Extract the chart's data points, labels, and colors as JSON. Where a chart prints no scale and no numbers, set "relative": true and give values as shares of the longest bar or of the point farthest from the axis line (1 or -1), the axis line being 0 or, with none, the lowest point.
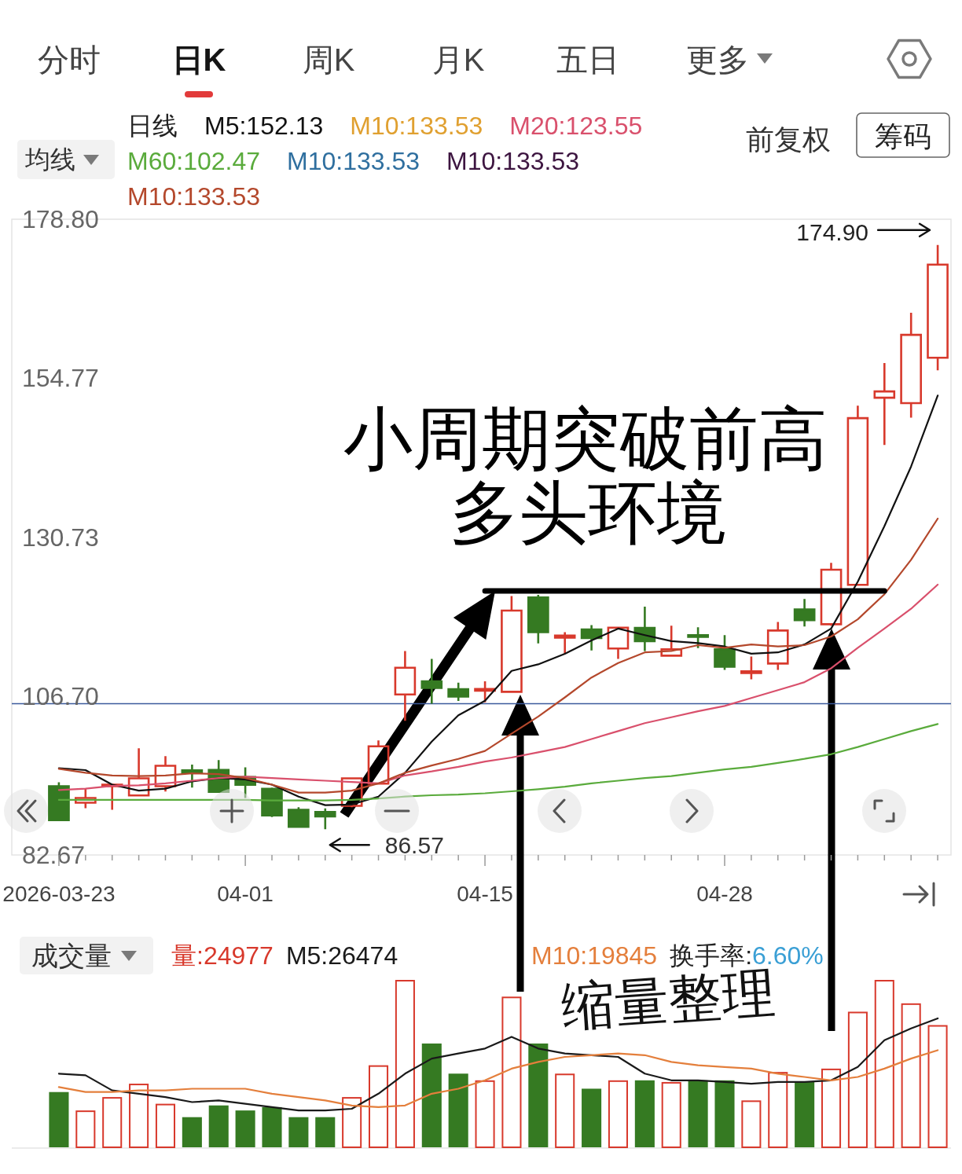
{
  "chart_data": [
    {
      "type": "other",
      "annotations": [
        "分时",
        "日K",
        "周K",
        "月K",
        "五日",
        "更多",
        "前复权",
        "筹码"
      ]
    },
    {
      "type": "candlestick",
      "title": "均线",
      "legend_title": "日线",
      "legend": "top left",
      "categories": [
        "2026-03-23",
        null,
        null,
        null,
        null,
        null,
        null,
        "04-01",
        null,
        null,
        null,
        null,
        null,
        null,
        null,
        null,
        "04-15",
        null,
        null,
        null,
        null,
        null,
        null,
        null,
        null,
        "04-28",
        null,
        null,
        null,
        null,
        null,
        null,
        null,
        null
      ],
      "ohlc": [
        [
          93.07,
          93.66,
          87.92,
          87.92
        ],
        [
          90.57,
          92.71,
          89.74,
          91.29
        ],
        [
          93.07,
          93.43,
          89.5,
          93.31
        ],
        [
          91.68,
          98.81,
          91.68,
          94.26
        ],
        [
          93.07,
          97.62,
          92.27,
          96.16
        ],
        [
          95.45,
          96.32,
          92.87,
          95.05
        ],
        [
          95.53,
          97.03,
          92.2,
          92.2
        ],
        [
          94.46,
          95.92,
          91.29,
          93.27
        ],
        [
          92.68,
          92.87,
          88.4,
          88.63
        ],
        [
          89.5,
          89.9,
          86.92,
          86.92
        ],
        [
          89.18,
          89.7,
          86.57,
          88.51
        ],
        [
          90.1,
          94.4,
          89.9,
          94.26
        ],
        [
          93.46,
          100.0,
          93.3,
          99.1
        ],
        [
          106.94,
          113.49,
          102.97,
          110.99
        ],
        [
          108.92,
          112.3,
          105.55,
          107.93
        ],
        [
          107.73,
          108.72,
          105.95,
          106.62
        ],
        [
          107.54,
          108.92,
          105.75,
          107.73
        ],
        [
          107.34,
          121.81,
          107.34,
          119.62
        ],
        [
          121.61,
          122.0,
          114.67,
          116.37
        ],
        [
          115.54,
          116.37,
          113.13,
          115.86
        ],
        [
          116.77,
          117.44,
          113.6,
          115.46
        ],
        [
          113.88,
          117.2,
          112.3,
          117.05
        ],
        [
          117.0,
          120.22,
          113.49,
          115.0
        ],
        [
          112.81,
          117.33,
          112.81,
          113.76
        ],
        [
          115.9,
          117.09,
          113.96,
          115.66
        ],
        [
          113.76,
          115.9,
          110.65,
          111.14
        ],
        [
          110.19,
          112.69,
          109.22,
          110.43
        ],
        [
          111.62,
          117.9,
          110.67,
          116.61
        ],
        [
          119.8,
          121.37,
          117.23,
          118.18
        ],
        [
          117.56,
          126.84,
          117.33,
          125.8
        ],
        [
          123.51,
          150.62,
          123.51,
          148.72
        ],
        [
          151.81,
          157.04,
          144.67,
          152.76
        ],
        [
          151.0,
          164.65,
          148.81,
          161.32
        ],
        [
          157.85,
          174.9,
          155.95,
          171.93
        ]
      ],
      "colors": [
        "#357a22",
        "#d8392c",
        "#d8392c",
        "#d8392c",
        "#d8392c",
        "#357a22",
        "#357a22",
        "#357a22",
        "#357a22",
        "#357a22",
        "#357a22",
        "#d8392c",
        "#d8392c",
        "#d8392c",
        "#357a22",
        "#357a22",
        "#d8392c",
        "#d8392c",
        "#357a22",
        "#d8392c",
        "#357a22",
        "#d8392c",
        "#357a22",
        "#d8392c",
        "#357a22",
        "#357a22",
        "#d8392c",
        "#d8392c",
        "#357a22",
        "#d8392c",
        "#d8392c",
        "#d8392c",
        "#d8392c",
        "#d8392c"
      ],
      "ylim": [
        82.67,
        178.8
      ],
      "yticks": [
        {
          "value": 178.8,
          "label": "178.80"
        },
        154.77,
        130.73,
        {
          "value": 106.7,
          "label": "106.70"
        },
        82.67
      ],
      "series": [
        {
          "name": "M5:152.13",
          "type": "line",
          "color": "#111111",
          "values": [
            95.8,
            95.5,
            93.3,
            92.4,
            92.7,
            93.8,
            94.3,
            94.1,
            93.3,
            91.5,
            90.2,
            90.3,
            91.5,
            95.1,
            99.8,
            103.8,
            106.0,
            110.5,
            111.5,
            113.1,
            115.1,
            116.9,
            115.9,
            115.0,
            114.7,
            114.2,
            113.1,
            113.3,
            114.5,
            116.9,
            124.0,
            132.4,
            141.4,
            152.13
          ]
        },
        {
          "name": "M10:133.53",
          "type": "line",
          "color": "#e0a030",
          "values": [
            null,
            null,
            null,
            null,
            null,
            null,
            null,
            null,
            null,
            null,
            null,
            null,
            null,
            null,
            null,
            null,
            null,
            null,
            null,
            null,
            null,
            null,
            null,
            null,
            null,
            null,
            null,
            null,
            null,
            null,
            null,
            null,
            null,
            null
          ]
        },
        {
          "name": "M20:123.55",
          "type": "line",
          "color": "#d9506c",
          "values": [
            92.5,
            92.7,
            93.1,
            93.2,
            93.5,
            93.9,
            94.3,
            94.5,
            94.3,
            94.1,
            93.9,
            93.7,
            93.5,
            94.7,
            95.3,
            96.0,
            96.8,
            97.4,
            98.2,
            99.0,
            100.2,
            101.4,
            102.6,
            103.5,
            104.4,
            105.2,
            106.4,
            107.6,
            108.8,
            110.9,
            114.0,
            116.9,
            119.9,
            123.55
          ]
        },
        {
          "name": "M60:102.47",
          "type": "line",
          "color": "#5aab3c",
          "values": [
            91.0,
            91.0,
            91.0,
            91.0,
            91.0,
            91.0,
            91.0,
            91.0,
            90.9,
            90.9,
            90.9,
            91.0,
            91.2,
            91.5,
            91.7,
            91.8,
            92.0,
            92.3,
            92.6,
            93.0,
            93.5,
            93.9,
            94.3,
            94.6,
            95.1,
            95.6,
            96.0,
            96.6,
            97.2,
            97.9,
            99.0,
            100.2,
            101.4,
            102.47
          ]
        },
        {
          "name": "M10:133.53",
          "type": "line",
          "color": "#2f6f9f",
          "values": [
            null,
            null,
            null,
            null,
            null,
            null,
            null,
            null,
            null,
            null,
            null,
            null,
            null,
            null,
            null,
            null,
            null,
            null,
            null,
            null,
            null,
            null,
            null,
            null,
            null,
            null,
            null,
            null,
            null,
            null,
            null,
            null,
            null,
            null
          ]
        },
        {
          "name": "M10:133.53",
          "type": "line",
          "color": "#3d1540",
          "values": [
            null,
            null,
            null,
            null,
            null,
            null,
            null,
            null,
            null,
            null,
            null,
            null,
            null,
            null,
            null,
            null,
            null,
            null,
            null,
            null,
            null,
            null,
            null,
            null,
            null,
            null,
            null,
            null,
            null,
            null,
            null,
            null,
            null,
            null
          ]
        },
        {
          "name": "M10:133.53",
          "type": "line",
          "color": "#b4482c",
          "values": [
            95.7,
            95.1,
            94.7,
            94.6,
            94.7,
            95.0,
            94.9,
            94.3,
            93.3,
            92.1,
            92.1,
            92.4,
            93.5,
            95.1,
            96.2,
            97.2,
            98.4,
            101.0,
            103.6,
            106.5,
            109.5,
            111.7,
            113.3,
            113.5,
            114.4,
            114.0,
            114.5,
            114.2,
            114.4,
            115.7,
            118.3,
            122.1,
            127.3,
            133.53
          ]
        },
        {
          "type": "line",
          "color": "#000000",
          "values": [
            null,
            null,
            null,
            null,
            null,
            null,
            null,
            null,
            null,
            null,
            null,
            null,
            null,
            null,
            null,
            null,
            122.6,
            122.6,
            122.6,
            122.6,
            122.6,
            122.6,
            122.6,
            122.6,
            122.6,
            122.6,
            122.6,
            122.6,
            122.6,
            122.6,
            122.6,
            122.6,
            null,
            null
          ]
        }
      ],
      "ref_lines": [
        {
          "axis": "y",
          "value": 105.55,
          "color": "#3b5a9c"
        }
      ],
      "annotations": [
        "小周期突破前高",
        "多头环境",
        "174.90",
        "86.57"
      ]
    },
    {
      "type": "bar",
      "title": "成交量",
      "legend": "top left",
      "relative": true,
      "categories": [
        null,
        null,
        null,
        null,
        null,
        null,
        null,
        null,
        null,
        null,
        null,
        null,
        null,
        null,
        null,
        null,
        null,
        null,
        null,
        null,
        null,
        null,
        null,
        null,
        null,
        null,
        null,
        null,
        null,
        null,
        null,
        null,
        null,
        null
      ],
      "series": [
        {
          "name": "量:24977",
          "color": "#d8392c",
          "colors": [
            "#357a22",
            "#d8392c",
            "#d8392c",
            "#d8392c",
            "#d8392c",
            "#357a22",
            "#357a22",
            "#357a22",
            "#357a22",
            "#357a22",
            "#357a22",
            "#d8392c",
            "#d8392c",
            "#d8392c",
            "#357a22",
            "#357a22",
            "#d8392c",
            "#d8392c",
            "#357a22",
            "#d8392c",
            "#357a22",
            "#d8392c",
            "#357a22",
            "#d8392c",
            "#357a22",
            "#357a22",
            "#d8392c",
            "#d8392c",
            "#357a22",
            "#d8392c",
            "#d8392c",
            "#d8392c",
            "#d8392c",
            "#d8392c"
          ],
          "values": [
            0.33,
            0.22,
            0.3,
            0.38,
            0.26,
            0.18,
            0.25,
            0.22,
            0.24,
            0.18,
            0.18,
            0.3,
            0.49,
            1,
            0.62,
            0.44,
            0.4,
            0.9,
            0.62,
            0.44,
            0.35,
            0.4,
            0.4,
            0.39,
            0.4,
            0.4,
            0.28,
            0.45,
            0.39,
            0.47,
            0.81,
            1,
            0.86,
            0.73
          ]
        },
        {
          "name": "M5:26474",
          "type": "line",
          "color": "#1a1a1a",
          "values": [
            0.44,
            0.43,
            0.34,
            0.32,
            0.3,
            0.27,
            0.28,
            0.26,
            0.24,
            0.22,
            0.22,
            0.23,
            0.32,
            0.44,
            0.53,
            0.56,
            0.59,
            0.66,
            0.59,
            0.56,
            0.55,
            0.54,
            0.44,
            0.4,
            0.4,
            0.39,
            0.38,
            0.39,
            0.39,
            0.4,
            0.48,
            0.64,
            0.71,
            0.77
          ]
        },
        {
          "name": "M10:19845",
          "type": "line",
          "color": "#e47f3c",
          "values": [
            0.36,
            0.33,
            0.33,
            0.34,
            0.34,
            0.35,
            0.35,
            0.35,
            0.32,
            0.3,
            0.28,
            0.25,
            0.24,
            0.25,
            0.32,
            0.35,
            0.4,
            0.47,
            0.51,
            0.54,
            0.55,
            0.56,
            0.55,
            0.51,
            0.49,
            0.48,
            0.47,
            0.44,
            0.42,
            0.4,
            0.42,
            0.47,
            0.53,
            0.58
          ]
        }
      ],
      "annotations": [
        "换手率:6.60%",
        "缩量整理"
      ]
    }
  ]
}
